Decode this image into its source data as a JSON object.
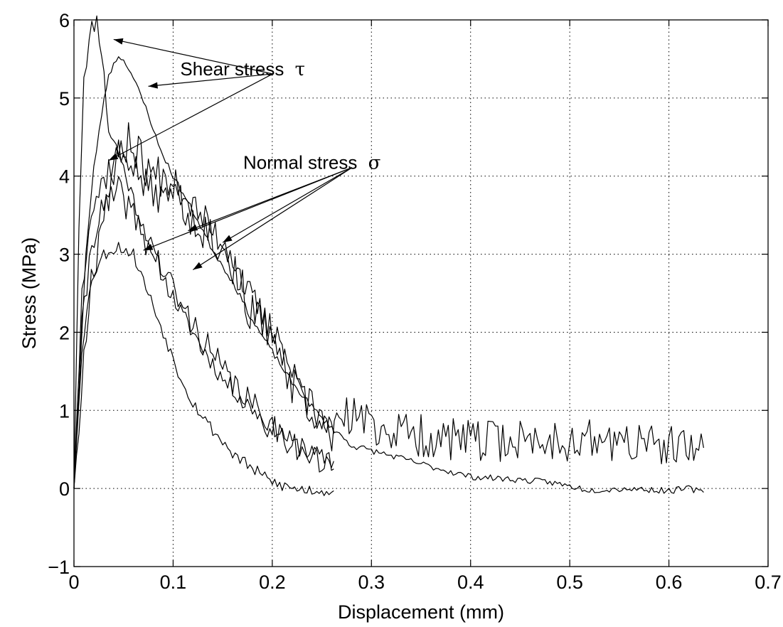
{
  "chart_data": {
    "type": "line",
    "title": "",
    "xlabel": "Displacement (mm)",
    "ylabel": "Stress (MPa)",
    "xlim": [
      0,
      0.7
    ],
    "ylim": [
      -1,
      6
    ],
    "xticks": [
      0,
      0.1,
      0.2,
      0.3,
      0.4,
      0.5,
      0.6,
      0.7
    ],
    "xtick_labels": [
      "0",
      "0.1",
      "0.2",
      "0.3",
      "0.4",
      "0.5",
      "0.6",
      "0.7"
    ],
    "yticks": [
      -1,
      0,
      1,
      2,
      3,
      4,
      5,
      6
    ],
    "ytick_labels": [
      "−1",
      "0",
      "1",
      "2",
      "3",
      "4",
      "5",
      "6"
    ],
    "grid": true,
    "grid_style": "dotted",
    "box": true,
    "line_color": "#000000",
    "annotations": [
      {
        "text": "Shear stress",
        "symbol": "τ",
        "anchor": [
          0.1,
          5.4
        ],
        "targets": [
          [
            0.04,
            5.75
          ],
          [
            0.075,
            5.15
          ],
          [
            0.035,
            4.2
          ]
        ]
      },
      {
        "text": "Normal stress",
        "symbol": "σ",
        "anchor": [
          0.18,
          4.2
        ],
        "targets": [
          [
            0.07,
            3.05
          ],
          [
            0.115,
            3.3
          ],
          [
            0.12,
            2.8
          ],
          [
            0.15,
            3.15
          ]
        ]
      }
    ],
    "series": [
      {
        "group": "shear",
        "noise": 0.12,
        "seed": 11,
        "points": [
          [
            0,
            0
          ],
          [
            0.005,
            3.4
          ],
          [
            0.01,
            5.3
          ],
          [
            0.018,
            5.9
          ],
          [
            0.023,
            6.0
          ],
          [
            0.028,
            5.6
          ],
          [
            0.035,
            4.6
          ],
          [
            0.045,
            4.3
          ],
          [
            0.06,
            3.7
          ],
          [
            0.075,
            3.2
          ],
          [
            0.09,
            2.7
          ],
          [
            0.11,
            2.2
          ],
          [
            0.13,
            1.8
          ],
          [
            0.15,
            1.4
          ],
          [
            0.17,
            1.15
          ],
          [
            0.19,
            0.9
          ],
          [
            0.21,
            0.7
          ],
          [
            0.23,
            0.5
          ],
          [
            0.25,
            0.4
          ],
          [
            0.262,
            0.35
          ]
        ]
      },
      {
        "group": "shear",
        "noise": 0.04,
        "seed": 23,
        "points": [
          [
            0,
            0
          ],
          [
            0.006,
            1.5
          ],
          [
            0.012,
            3.0
          ],
          [
            0.02,
            4.1
          ],
          [
            0.028,
            4.8
          ],
          [
            0.035,
            5.3
          ],
          [
            0.045,
            5.55
          ],
          [
            0.055,
            5.4
          ],
          [
            0.065,
            5.1
          ],
          [
            0.075,
            4.8
          ],
          [
            0.085,
            4.4
          ],
          [
            0.1,
            4.0
          ],
          [
            0.12,
            3.55
          ],
          [
            0.14,
            3.05
          ],
          [
            0.16,
            2.65
          ],
          [
            0.18,
            2.15
          ],
          [
            0.2,
            1.75
          ],
          [
            0.22,
            1.35
          ],
          [
            0.25,
            0.9
          ],
          [
            0.28,
            0.55
          ],
          [
            0.32,
            0.42
          ],
          [
            0.36,
            0.28
          ],
          [
            0.4,
            0.15
          ],
          [
            0.44,
            0.12
          ],
          [
            0.48,
            0.08
          ],
          [
            0.52,
            -0.02
          ],
          [
            0.56,
            0.0
          ],
          [
            0.6,
            -0.03
          ],
          [
            0.62,
            0.0
          ],
          [
            0.635,
            -0.05
          ]
        ]
      },
      {
        "group": "normal",
        "noise": 0.22,
        "seed": 37,
        "points": [
          [
            0,
            0
          ],
          [
            0.008,
            2.5
          ],
          [
            0.015,
            3.5
          ],
          [
            0.025,
            3.8
          ],
          [
            0.035,
            4.1
          ],
          [
            0.045,
            4.3
          ],
          [
            0.055,
            4.25
          ],
          [
            0.07,
            3.9
          ],
          [
            0.09,
            3.7
          ],
          [
            0.105,
            3.9
          ],
          [
            0.12,
            3.6
          ],
          [
            0.14,
            3.3
          ],
          [
            0.16,
            3.0
          ],
          [
            0.175,
            2.5
          ],
          [
            0.19,
            2.2
          ],
          [
            0.205,
            1.9
          ],
          [
            0.22,
            1.5
          ],
          [
            0.235,
            1.1
          ],
          [
            0.25,
            0.8
          ],
          [
            0.262,
            0.7
          ]
        ]
      },
      {
        "group": "normal",
        "noise": 0.2,
        "seed": 41,
        "points": [
          [
            0,
            0
          ],
          [
            0.008,
            2.0
          ],
          [
            0.018,
            3.2
          ],
          [
            0.03,
            3.6
          ],
          [
            0.045,
            3.8
          ],
          [
            0.06,
            3.5
          ],
          [
            0.075,
            3.1
          ],
          [
            0.09,
            2.8
          ],
          [
            0.11,
            2.3
          ],
          [
            0.13,
            1.9
          ],
          [
            0.15,
            1.5
          ],
          [
            0.17,
            1.2
          ],
          [
            0.19,
            0.9
          ],
          [
            0.21,
            0.7
          ],
          [
            0.23,
            0.5
          ],
          [
            0.25,
            0.3
          ],
          [
            0.262,
            0.25
          ]
        ]
      },
      {
        "group": "normal",
        "noise": 0.08,
        "seed": 53,
        "points": [
          [
            0,
            0
          ],
          [
            0.008,
            1.8
          ],
          [
            0.018,
            2.7
          ],
          [
            0.03,
            3.0
          ],
          [
            0.045,
            3.1
          ],
          [
            0.06,
            3.0
          ],
          [
            0.075,
            2.5
          ],
          [
            0.09,
            2.0
          ],
          [
            0.105,
            1.5
          ],
          [
            0.12,
            1.1
          ],
          [
            0.14,
            0.75
          ],
          [
            0.16,
            0.45
          ],
          [
            0.18,
            0.25
          ],
          [
            0.2,
            0.08
          ],
          [
            0.22,
            0.0
          ],
          [
            0.24,
            -0.02
          ],
          [
            0.262,
            -0.03
          ]
        ]
      },
      {
        "group": "normal",
        "noise": 0.28,
        "seed": 67,
        "points": [
          [
            0,
            0
          ],
          [
            0.015,
            2.5
          ],
          [
            0.03,
            3.6
          ],
          [
            0.045,
            4.2
          ],
          [
            0.055,
            4.5
          ],
          [
            0.065,
            4.3
          ],
          [
            0.08,
            4.0
          ],
          [
            0.1,
            4.05
          ],
          [
            0.115,
            3.5
          ],
          [
            0.135,
            3.3
          ],
          [
            0.15,
            3.1
          ],
          [
            0.165,
            2.7
          ],
          [
            0.18,
            2.2
          ],
          [
            0.2,
            2.0
          ],
          [
            0.22,
            1.3
          ],
          [
            0.24,
            1.0
          ],
          [
            0.26,
            0.7
          ],
          [
            0.28,
            0.95
          ],
          [
            0.3,
            0.8
          ],
          [
            0.33,
            0.72
          ],
          [
            0.36,
            0.65
          ],
          [
            0.4,
            0.6
          ],
          [
            0.45,
            0.62
          ],
          [
            0.5,
            0.62
          ],
          [
            0.55,
            0.6
          ],
          [
            0.6,
            0.52
          ],
          [
            0.62,
            0.48
          ],
          [
            0.635,
            0.52
          ]
        ]
      }
    ]
  }
}
